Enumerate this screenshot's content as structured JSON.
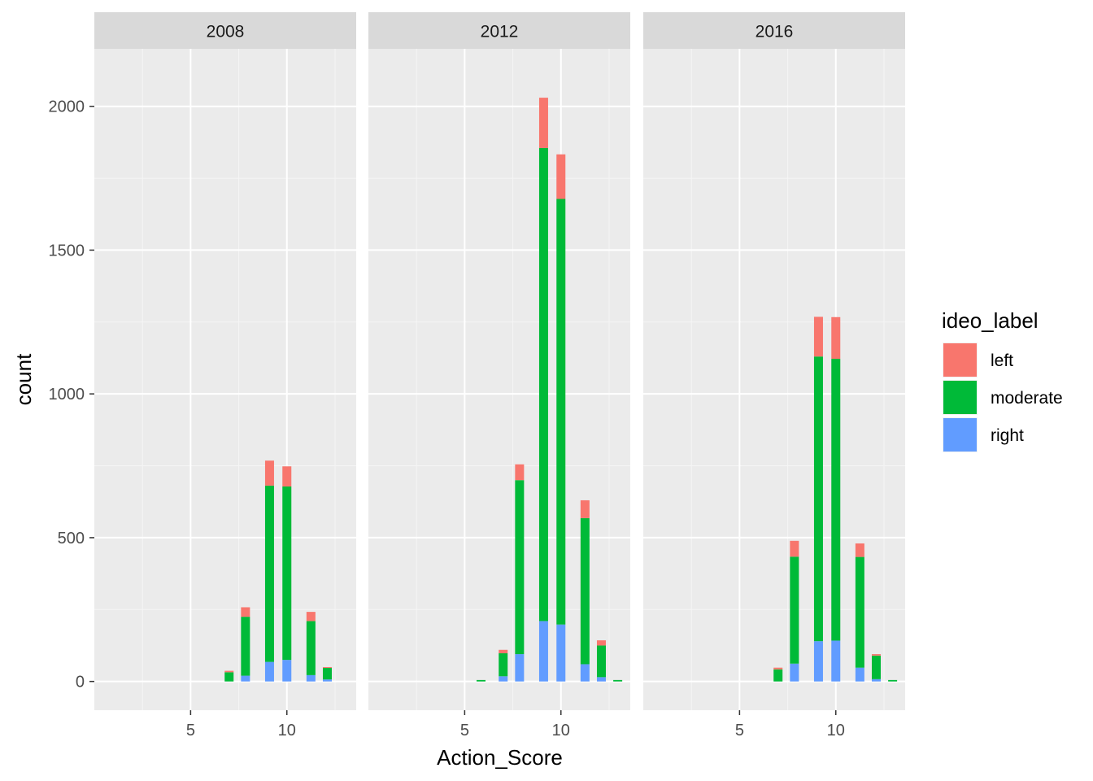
{
  "chart_data": {
    "type": "bar",
    "stacked": true,
    "facet_variable": "year",
    "xlabel": "Action_Score",
    "ylabel": "count",
    "xlim": [
      0,
      13.6
    ],
    "ylim": [
      -100,
      2200
    ],
    "x_ticks": [
      5,
      10
    ],
    "y_ticks": [
      0,
      500,
      1000,
      1500,
      2000
    ],
    "grid": true,
    "legend": {
      "title": "ideo_label",
      "position": "right",
      "entries": [
        "left",
        "moderate",
        "right"
      ]
    },
    "colors": {
      "left": "#F8766D",
      "moderate": "#00BA38",
      "right": "#619CFF"
    },
    "series_order": [
      "left",
      "moderate",
      "right"
    ],
    "facets": [
      {
        "label": "2008",
        "bars": [
          {
            "x": 7.0,
            "right": 0,
            "moderate": 32,
            "left": 5
          },
          {
            "x": 7.85,
            "right": 20,
            "moderate": 205,
            "left": 33
          },
          {
            "x": 9.1,
            "right": 68,
            "moderate": 613,
            "left": 87
          },
          {
            "x": 10.0,
            "right": 75,
            "moderate": 603,
            "left": 70
          },
          {
            "x": 11.25,
            "right": 22,
            "moderate": 188,
            "left": 32
          },
          {
            "x": 12.1,
            "right": 7,
            "moderate": 40,
            "left": 3
          }
        ]
      },
      {
        "label": "2012",
        "bars": [
          {
            "x": 5.85,
            "right": 0,
            "moderate": 5,
            "left": 0
          },
          {
            "x": 7.0,
            "right": 18,
            "moderate": 80,
            "left": 12
          },
          {
            "x": 7.85,
            "right": 95,
            "moderate": 605,
            "left": 55
          },
          {
            "x": 9.1,
            "right": 210,
            "moderate": 1645,
            "left": 175
          },
          {
            "x": 10.0,
            "right": 198,
            "moderate": 1480,
            "left": 155
          },
          {
            "x": 11.25,
            "right": 60,
            "moderate": 508,
            "left": 62
          },
          {
            "x": 12.1,
            "right": 15,
            "moderate": 110,
            "left": 18
          },
          {
            "x": 12.95,
            "right": 0,
            "moderate": 5,
            "left": 0
          }
        ]
      },
      {
        "label": "2016",
        "bars": [
          {
            "x": 7.0,
            "right": 0,
            "moderate": 42,
            "left": 6
          },
          {
            "x": 7.85,
            "right": 62,
            "moderate": 372,
            "left": 55
          },
          {
            "x": 9.1,
            "right": 140,
            "moderate": 990,
            "left": 138
          },
          {
            "x": 10.0,
            "right": 142,
            "moderate": 980,
            "left": 145
          },
          {
            "x": 11.25,
            "right": 48,
            "moderate": 385,
            "left": 47
          },
          {
            "x": 12.1,
            "right": 8,
            "moderate": 82,
            "left": 5
          },
          {
            "x": 12.95,
            "right": 0,
            "moderate": 5,
            "left": 0
          }
        ]
      }
    ]
  }
}
